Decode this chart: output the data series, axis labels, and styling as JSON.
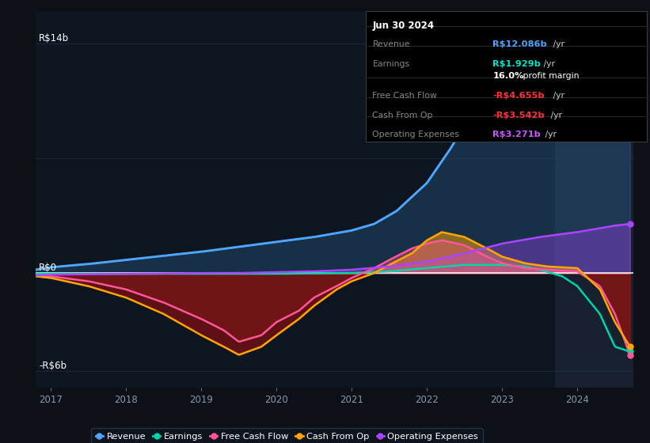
{
  "bg_color": "#0d1117",
  "plot_bg_color": "#0d1520",
  "highlight_bg": "#16202e",
  "title": "Jun 30 2024",
  "y_label_top": "R$14b",
  "y_label_zero": "R$0",
  "y_label_bottom": "-R$6b",
  "x_ticks": [
    2017,
    2018,
    2019,
    2020,
    2021,
    2022,
    2023,
    2024
  ],
  "y_max": 14,
  "y_min": -7,
  "tooltip": {
    "date": "Jun 30 2024",
    "revenue_label": "Revenue",
    "revenue_value": "R$12.086b",
    "revenue_color": "#4da6ff",
    "earnings_label": "Earnings",
    "earnings_value": "R$1.929b",
    "earnings_color": "#00e5cc",
    "margin_value": "16.0%",
    "fcf_label": "Free Cash Flow",
    "fcf_value": "-R$4.655b",
    "fcf_color": "#ff3333",
    "cashop_label": "Cash From Op",
    "cashop_value": "-R$3.542b",
    "cashop_color": "#ff3333",
    "opex_label": "Operating Expenses",
    "opex_value": "R$3.271b",
    "opex_color": "#cc55ff"
  },
  "legend": [
    {
      "label": "Revenue",
      "color": "#4da6ff"
    },
    {
      "label": "Earnings",
      "color": "#00d4aa"
    },
    {
      "label": "Free Cash Flow",
      "color": "#ff5599"
    },
    {
      "label": "Cash From Op",
      "color": "#ffa500"
    },
    {
      "label": "Operating Expenses",
      "color": "#aa44ff"
    }
  ],
  "colors": {
    "revenue": "#4da6ff",
    "earnings": "#00d4aa",
    "fcf": "#ff5599",
    "cashop": "#ffa500",
    "opex": "#aa44ff"
  }
}
